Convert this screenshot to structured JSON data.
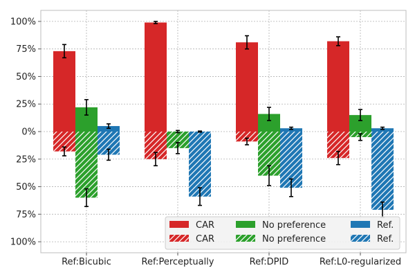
{
  "chart_data": {
    "type": "bar",
    "categories": [
      "Ref:Bicubic",
      "Ref:Perceptually",
      "Ref:DPID",
      "Ref:L0-regularized"
    ],
    "ylim": [
      -1.1,
      1.1
    ],
    "yticks": [
      {
        "value": 1.0,
        "label": "100%"
      },
      {
        "value": 0.75,
        "label": "75%"
      },
      {
        "value": 0.5,
        "label": "50%"
      },
      {
        "value": 0.25,
        "label": "25%"
      },
      {
        "value": 0.0,
        "label": "0%"
      },
      {
        "value": -0.25,
        "label": "25%"
      },
      {
        "value": -0.5,
        "label": "50%"
      },
      {
        "value": -0.75,
        "label": "75%"
      },
      {
        "value": -1.0,
        "label": "100%"
      }
    ],
    "grid": true,
    "legend_position": "lower-right",
    "series": [
      {
        "name": "CAR",
        "direction": "up",
        "color": "#d62728",
        "values": [
          0.73,
          0.99,
          0.81,
          0.82
        ],
        "errors": [
          0.06,
          0.01,
          0.06,
          0.04
        ]
      },
      {
        "name": "No preference",
        "direction": "up",
        "color": "#2ca02c",
        "values": [
          0.22,
          0.0,
          0.16,
          0.15
        ],
        "errors": [
          0.07,
          0.01,
          0.06,
          0.05
        ]
      },
      {
        "name": "Ref.",
        "direction": "up",
        "color": "#1f77b4",
        "values": [
          0.05,
          0.0,
          0.03,
          0.03
        ],
        "errors": [
          0.02,
          0.005,
          0.01,
          0.01
        ]
      },
      {
        "name": "CAR",
        "direction": "down",
        "color": "#d62728",
        "values": [
          0.18,
          0.25,
          0.09,
          0.24
        ],
        "errors": [
          0.04,
          0.06,
          0.03,
          0.06
        ]
      },
      {
        "name": "No preference",
        "direction": "down",
        "color": "#2ca02c",
        "values": [
          0.6,
          0.15,
          0.4,
          0.05
        ],
        "errors": [
          0.08,
          0.05,
          0.09,
          0.03
        ]
      },
      {
        "name": "Ref.",
        "direction": "down",
        "color": "#1f77b4",
        "values": [
          0.21,
          0.59,
          0.51,
          0.71
        ],
        "errors": [
          0.05,
          0.08,
          0.08,
          0.07
        ]
      }
    ],
    "legend": [
      {
        "label": "CAR",
        "color": "#d62728",
        "hatched": false
      },
      {
        "label": "No preference",
        "color": "#2ca02c",
        "hatched": false
      },
      {
        "label": "Ref.",
        "color": "#1f77b4",
        "hatched": false
      },
      {
        "label": "CAR",
        "color": "#d62728",
        "hatched": true
      },
      {
        "label": "No preference",
        "color": "#2ca02c",
        "hatched": true
      },
      {
        "label": "Ref.",
        "color": "#1f77b4",
        "hatched": true
      }
    ]
  }
}
